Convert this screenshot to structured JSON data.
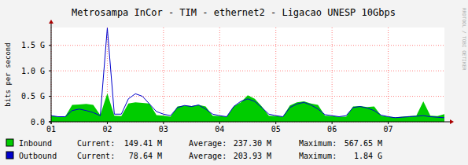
{
  "chart_data": {
    "type": "area_line",
    "title": "Metrosampa InCor - TIM - ethernet2 - Ligacao UNESP 10Gbps",
    "y_label": "bits per second",
    "watermark": "RRDTOOL / TOBI OETIKER",
    "x": [
      1,
      1.125,
      1.25,
      1.375,
      1.5,
      1.625,
      1.75,
      1.875,
      2,
      2.125,
      2.25,
      2.375,
      2.5,
      2.625,
      2.75,
      2.875,
      3,
      3.125,
      3.25,
      3.375,
      3.5,
      3.625,
      3.75,
      3.875,
      4,
      4.125,
      4.25,
      4.375,
      4.5,
      4.625,
      4.75,
      4.875,
      5,
      5.125,
      5.25,
      5.375,
      5.5,
      5.625,
      5.75,
      5.875,
      6,
      6.125,
      6.25,
      6.375,
      6.5,
      6.625,
      6.75,
      6.875,
      7,
      7.125,
      7.25,
      7.375,
      7.5,
      7.625,
      7.75,
      7.875,
      8
    ],
    "xlim": [
      1,
      8
    ],
    "xticks": [
      {
        "value": 1,
        "label": "01"
      },
      {
        "value": 2,
        "label": "02"
      },
      {
        "value": 3,
        "label": "03"
      },
      {
        "value": 4,
        "label": "04"
      },
      {
        "value": 5,
        "label": "05"
      },
      {
        "value": 6,
        "label": "06"
      },
      {
        "value": 7,
        "label": "07"
      }
    ],
    "ylim": [
      0,
      1.85
    ],
    "yticks": [
      {
        "value": 0,
        "label": "0.0"
      },
      {
        "value": 0.5,
        "label": "0.5 G"
      },
      {
        "value": 1,
        "label": "1.0 G"
      },
      {
        "value": 1.5,
        "label": "1.5 G"
      }
    ],
    "grid": true,
    "series": [
      {
        "name": "Inbound",
        "type": "area",
        "color": "#00cc00",
        "values": [
          0.12,
          0.1,
          0.1,
          0.33,
          0.34,
          0.35,
          0.33,
          0.13,
          0.56,
          0.12,
          0.11,
          0.36,
          0.38,
          0.37,
          0.36,
          0.13,
          0.12,
          0.1,
          0.3,
          0.32,
          0.31,
          0.33,
          0.3,
          0.12,
          0.11,
          0.1,
          0.3,
          0.38,
          0.52,
          0.45,
          0.3,
          0.12,
          0.11,
          0.1,
          0.32,
          0.38,
          0.4,
          0.36,
          0.33,
          0.12,
          0.11,
          0.1,
          0.1,
          0.3,
          0.31,
          0.29,
          0.3,
          0.12,
          0.1,
          0.09,
          0.1,
          0.11,
          0.12,
          0.4,
          0.12,
          0.11,
          0.15
        ],
        "stats": [
          {
            "label": "Current:",
            "text": "149.41 M"
          },
          {
            "label": "Average:",
            "text": "237.30 M"
          },
          {
            "label": "Maximum:",
            "text": "567.65 M"
          }
        ]
      },
      {
        "name": "Outbound",
        "type": "line",
        "color": "#0000cc",
        "values": [
          0.12,
          0.1,
          0.1,
          0.22,
          0.25,
          0.22,
          0.18,
          0.12,
          1.84,
          0.15,
          0.15,
          0.45,
          0.55,
          0.5,
          0.35,
          0.2,
          0.15,
          0.12,
          0.28,
          0.32,
          0.3,
          0.33,
          0.25,
          0.15,
          0.12,
          0.1,
          0.3,
          0.4,
          0.45,
          0.4,
          0.28,
          0.15,
          0.12,
          0.1,
          0.28,
          0.35,
          0.38,
          0.33,
          0.25,
          0.14,
          0.12,
          0.1,
          0.12,
          0.28,
          0.3,
          0.27,
          0.22,
          0.13,
          0.1,
          0.08,
          0.09,
          0.1,
          0.11,
          0.12,
          0.1,
          0.09,
          0.079
        ],
        "stats": [
          {
            "label": "Current:",
            "text": "78.64 M"
          },
          {
            "label": "Average:",
            "text": "203.93 M"
          },
          {
            "label": "Maximum:",
            "text": "1.84 G"
          }
        ]
      }
    ]
  }
}
